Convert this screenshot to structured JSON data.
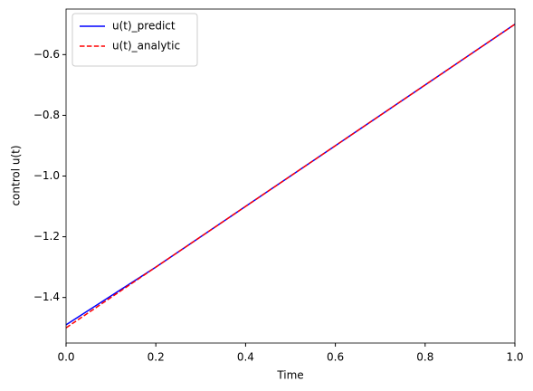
{
  "chart_data": {
    "type": "line",
    "xlabel": "Time",
    "ylabel": "control u(t)",
    "x": [
      0,
      0.2,
      0.4,
      0.6,
      0.8,
      1.0
    ],
    "series": [
      {
        "name": "u(t)_predict",
        "color": "#0000ff",
        "dash": "solid",
        "values": [
          -1.49,
          -1.3,
          -1.1,
          -0.9,
          -0.7,
          -0.5
        ]
      },
      {
        "name": "u(t)_analytic",
        "color": "#ff0000",
        "dash": "dashed",
        "values": [
          -1.5,
          -1.3,
          -1.1,
          -0.9,
          -0.7,
          -0.5
        ]
      }
    ],
    "xlim": [
      0,
      1
    ],
    "ylim": [
      -1.55,
      -0.45
    ],
    "xticks": [
      {
        "value": 0,
        "label": "0.0"
      },
      0.2,
      0.4,
      0.6,
      0.8,
      {
        "value": 1,
        "label": "1.0"
      }
    ],
    "yticks": [
      {
        "value": -1.4,
        "label": "−1.4"
      },
      {
        "value": -1.2,
        "label": "−1.2"
      },
      {
        "value": -1.0,
        "label": "−1.0"
      },
      {
        "value": -0.8,
        "label": "−0.8"
      },
      {
        "value": -0.6,
        "label": "−0.6"
      }
    ],
    "legend": "upper left",
    "grid": false
  }
}
